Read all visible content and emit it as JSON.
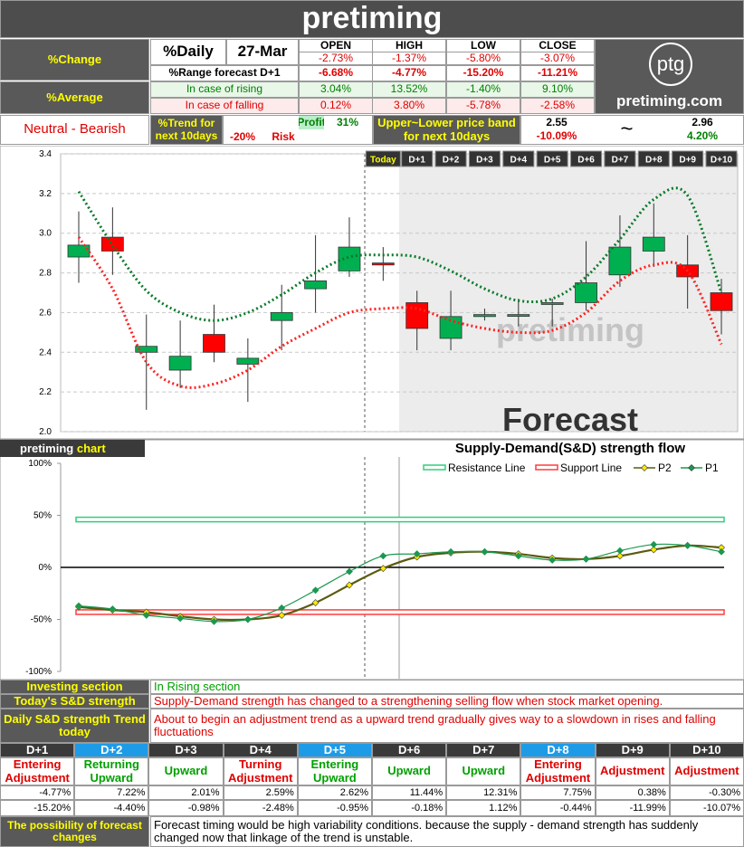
{
  "header": {
    "title": "pretiming",
    "logo": "ptg",
    "site": "pretiming.com"
  },
  "summary": {
    "change_label": "%Change",
    "average_label": "%Average",
    "daily_label": "%Daily",
    "date": "27-Mar",
    "columns": [
      "OPEN",
      "HIGH",
      "LOW",
      "CLOSE"
    ],
    "change": [
      "-2.73%",
      "-1.37%",
      "-5.80%",
      "-3.07%"
    ],
    "range_label": "%Range forecast D+1",
    "range": [
      "-6.68%",
      "-4.77%",
      "-15.20%",
      "-11.21%"
    ],
    "rising_label": "In case of rising",
    "rising": [
      "3.04%",
      "13.52%",
      "-1.40%",
      "9.10%"
    ],
    "falling_label": "In case of falling",
    "falling": [
      "0.12%",
      "3.80%",
      "-5.78%",
      "-2.58%"
    ]
  },
  "outlook": {
    "stance": "Neutral - Bearish",
    "trend_label": "%Trend for next 10days",
    "profit_label": "Profit",
    "profit": "31%",
    "risk": "-20%",
    "risk_label": "Risk",
    "band_label": "Upper~Lower price band for next 10days",
    "lower": "2.55",
    "lower_pct": "-10.09%",
    "tilde": "~",
    "upper": "2.96",
    "upper_pct": "4.20%"
  },
  "chart_data": [
    {
      "type": "candlestick",
      "categories": [
        null,
        null,
        null,
        null,
        null,
        null,
        null,
        null,
        null,
        "Today",
        "D+1",
        "D+2",
        "D+3",
        "D+4",
        "D+5",
        "D+6",
        "D+7",
        "D+8",
        "D+9",
        "D+10"
      ],
      "open": [
        2.88,
        2.98,
        2.4,
        2.31,
        2.49,
        2.34,
        2.56,
        2.72,
        2.81,
        2.85,
        2.65,
        2.47,
        2.58,
        2.59,
        2.65,
        2.65,
        2.79,
        2.91,
        2.84,
        2.7
      ],
      "high": [
        3.11,
        3.13,
        2.59,
        2.56,
        2.64,
        2.47,
        2.74,
        2.99,
        3.08,
        2.93,
        2.71,
        2.71,
        2.62,
        2.67,
        2.67,
        2.96,
        3.09,
        3.15,
        2.99,
        2.77
      ],
      "low": [
        2.75,
        2.79,
        2.11,
        2.22,
        2.35,
        2.15,
        2.41,
        2.6,
        2.78,
        2.76,
        2.41,
        2.41,
        2.56,
        2.53,
        2.53,
        2.61,
        2.73,
        2.83,
        2.62,
        2.49
      ],
      "close": [
        2.94,
        2.91,
        2.43,
        2.38,
        2.4,
        2.37,
        2.6,
        2.76,
        2.93,
        2.84,
        2.52,
        2.58,
        2.59,
        2.59,
        2.65,
        2.75,
        2.93,
        2.98,
        2.78,
        2.61
      ],
      "up_color": "#00b050",
      "down_color": "#ff0000",
      "lines": [
        {
          "color": "#0a7a2a",
          "values": [
            3.21,
            2.94,
            2.71,
            2.6,
            2.56,
            2.6,
            2.69,
            2.8,
            2.88,
            2.89,
            2.88,
            2.81,
            2.72,
            2.66,
            2.67,
            2.78,
            2.97,
            3.17,
            3.19,
            2.7
          ]
        },
        {
          "color": "#ff2020",
          "values": [
            2.98,
            2.72,
            2.35,
            2.23,
            2.24,
            2.31,
            2.43,
            2.52,
            2.6,
            2.62,
            2.62,
            2.56,
            2.52,
            2.5,
            2.51,
            2.6,
            2.76,
            2.84,
            2.81,
            2.44
          ]
        }
      ],
      "ylim": [
        2,
        3.4
      ],
      "yticks": [
        {
          "value": 2,
          "label": "2.0"
        },
        2.2,
        2.4,
        2.6,
        2.8,
        {
          "value": 3,
          "label": "3.0"
        },
        3.2,
        3.4
      ],
      "grid": true,
      "watermark": "pretiming",
      "annotation": "Forecast"
    },
    {
      "type": "line",
      "label": "pretiming",
      "label_accent": "chart",
      "title": "Supply-Demand(S&D) strength flow",
      "hlines": [
        {
          "name": "Resistance Line",
          "color": "#2fcf7a",
          "value": 46
        },
        {
          "name": "Support Line",
          "color": "#ff3b3b",
          "value": -43
        }
      ],
      "series": [
        {
          "name": "P2",
          "color": "#5b5b10",
          "marker_color": "#ffe800",
          "values": [
            -38,
            -41,
            -43,
            -47,
            -50,
            -50,
            -46,
            -34,
            -17,
            -1,
            10,
            14,
            15,
            13,
            9,
            8,
            11,
            17,
            21,
            19
          ]
        },
        {
          "name": "P1",
          "color": "#1a9850",
          "marker_color": "#1a9850",
          "values": [
            -37,
            -40,
            -46,
            -49,
            -52,
            -50,
            -39,
            -22,
            -4,
            11,
            13,
            15,
            15,
            11,
            7,
            8,
            16,
            22,
            21,
            15
          ]
        }
      ],
      "ylim": [
        -100,
        100
      ],
      "yticks": [
        {
          "value": 100,
          "label": "100%"
        },
        {
          "value": 50,
          "label": "50%"
        },
        {
          "value": 0,
          "label": "0%"
        },
        {
          "value": -50,
          "label": "-50%"
        },
        {
          "value": -100,
          "label": "-100%"
        }
      ]
    }
  ],
  "sections": [
    {
      "label": "Investing section",
      "text": "In Rising section",
      "color": "#00a000"
    },
    {
      "label": "Today's S&D strength",
      "text": "Supply-Demand strength has changed to a strengthening selling flow when stock market opening.",
      "color": "#e00000"
    },
    {
      "label": "Daily S&D strength Trend today",
      "text": "About to begin an adjustment trend as a upward trend gradually gives way to a slowdown in rises and falling fluctuations",
      "color": "#e00000"
    }
  ],
  "daily": [
    {
      "day": "D+1",
      "header_color": "#3a3a3a",
      "trend": "Entering Adjustment",
      "color": "#e00000",
      "high": "-4.77%",
      "low": "-15.20%"
    },
    {
      "day": "D+2",
      "header_color": "#1e9be6",
      "trend": "Returning Upward",
      "color": "#00a000",
      "high": "7.22%",
      "low": "-4.40%"
    },
    {
      "day": "D+3",
      "header_color": "#3a3a3a",
      "trend": "Upward",
      "color": "#00a000",
      "high": "2.01%",
      "low": "-0.98%"
    },
    {
      "day": "D+4",
      "header_color": "#3a3a3a",
      "trend": "Turning Adjustment",
      "color": "#e00000",
      "high": "2.59%",
      "low": "-2.48%"
    },
    {
      "day": "D+5",
      "header_color": "#1e9be6",
      "trend": "Entering Upward",
      "color": "#00a000",
      "high": "2.62%",
      "low": "-0.95%"
    },
    {
      "day": "D+6",
      "header_color": "#3a3a3a",
      "trend": "Upward",
      "color": "#00a000",
      "high": "11.44%",
      "low": "-0.18%"
    },
    {
      "day": "D+7",
      "header_color": "#3a3a3a",
      "trend": "Upward",
      "color": "#00a000",
      "high": "12.31%",
      "low": "1.12%"
    },
    {
      "day": "D+8",
      "header_color": "#1e9be6",
      "trend": "Entering Adjustment",
      "color": "#e00000",
      "high": "7.75%",
      "low": "-0.44%"
    },
    {
      "day": "D+9",
      "header_color": "#3a3a3a",
      "trend": "Adjustment",
      "color": "#e00000",
      "high": "0.38%",
      "low": "-11.99%"
    },
    {
      "day": "D+10",
      "header_color": "#3a3a3a",
      "trend": "Adjustment",
      "color": "#e00000",
      "high": "-0.30%",
      "low": "-10.07%"
    }
  ],
  "footer": {
    "label": "The possibility of forecast changes",
    "text": "Forecast timing would be high variability conditions. because the supply - demand strength has suddenly changed now that linkage of the trend is unstable."
  }
}
